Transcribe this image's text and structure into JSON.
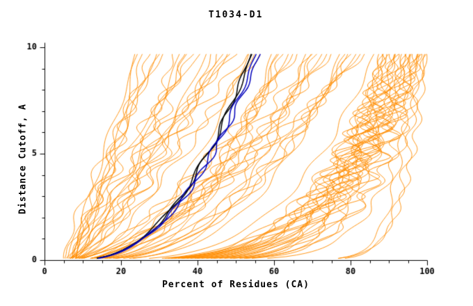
{
  "title": "T1034-D1",
  "chart_data": {
    "type": "line",
    "title": "T1034-D1",
    "xlabel": "Percent of Residues (CA)",
    "ylabel": "Distance Cutoff, A",
    "xlim": [
      0,
      100
    ],
    "ylim": [
      0,
      10
    ],
    "x_major_ticks": [
      0,
      20,
      40,
      60,
      80,
      100
    ],
    "x_minor_step": 5,
    "y_major_ticks": [
      0,
      5,
      10
    ],
    "y_minor_step": 1,
    "grid": false,
    "legend": "none",
    "colors": {
      "models": "#ff8c00",
      "highlight_black": "#000000",
      "highlight_blue": "#0000bb",
      "axis": "#000000",
      "background": "#ffffff"
    },
    "curve_model": "x(y) = x0 + (x10 - x0) * (y/10)^p + amp * sin(freq*y*2*pi/10 + phase) * sin(pi*y/10)^0.7",
    "curve_params_format": [
      "x0",
      "x10",
      "p",
      "amp",
      "freq",
      "phase"
    ],
    "orange_curves": [
      [
        5,
        88,
        0.13,
        1.5,
        6,
        0
      ],
      [
        6,
        88.5,
        0.16,
        2,
        7.5,
        1
      ],
      [
        7,
        89,
        0.19,
        2.5,
        9,
        2
      ],
      [
        8,
        89.5,
        0.22,
        3,
        10.5,
        3
      ],
      [
        9,
        90,
        0.25,
        1.5,
        6,
        4
      ],
      [
        10,
        90.5,
        0.28,
        2,
        7.5,
        5
      ],
      [
        5,
        91,
        0.13,
        2.5,
        9,
        0
      ],
      [
        6,
        91.5,
        0.16,
        3,
        10.5,
        1
      ],
      [
        7,
        92,
        0.19,
        1.5,
        6,
        2
      ],
      [
        8,
        92.5,
        0.22,
        2,
        7.5,
        3
      ],
      [
        9,
        93,
        0.25,
        2.5,
        9,
        4
      ],
      [
        10,
        93.5,
        0.28,
        3,
        10.5,
        5
      ],
      [
        5,
        94,
        0.13,
        1.5,
        6,
        0
      ],
      [
        6,
        94.5,
        0.16,
        2,
        7.5,
        1
      ],
      [
        7,
        95,
        0.19,
        2.5,
        9,
        2
      ],
      [
        8,
        95.5,
        0.22,
        3,
        10.5,
        3
      ],
      [
        9,
        96,
        0.25,
        1.5,
        6,
        4
      ],
      [
        10,
        96.5,
        0.28,
        2,
        7.5,
        5
      ],
      [
        5,
        97,
        0.13,
        2.5,
        9,
        0
      ],
      [
        6,
        97.5,
        0.16,
        3,
        10.5,
        1
      ],
      [
        7,
        98,
        0.19,
        1.5,
        6,
        2
      ],
      [
        8,
        98.5,
        0.22,
        2,
        7.5,
        3
      ],
      [
        9,
        99,
        0.25,
        2.5,
        9,
        4
      ],
      [
        10,
        99.5,
        0.28,
        3,
        10.5,
        5
      ],
      [
        5,
        100,
        0.12,
        1.5,
        6,
        0
      ],
      [
        7,
        100,
        0.15,
        2,
        8,
        2
      ],
      [
        6,
        96,
        0.05,
        1,
        5,
        0
      ],
      [
        7,
        98,
        0.05,
        1.2,
        6,
        2
      ],
      [
        8,
        100,
        0.06,
        1,
        7,
        4
      ],
      [
        5,
        60,
        0.3,
        1,
        4,
        0
      ],
      [
        7,
        61.5,
        0.38,
        1.6,
        6,
        1
      ],
      [
        9,
        63,
        0.46,
        2.2,
        8,
        2
      ],
      [
        11,
        64.5,
        0.54,
        1,
        4,
        3
      ],
      [
        5,
        66,
        0.62,
        1.6,
        6,
        4
      ],
      [
        7,
        67.5,
        0.7,
        2.2,
        8,
        5
      ],
      [
        9,
        69,
        0.3,
        1,
        4,
        0
      ],
      [
        11,
        70.5,
        0.38,
        1.6,
        6,
        1
      ],
      [
        5,
        72,
        0.46,
        2.2,
        8,
        2
      ],
      [
        7,
        73.5,
        0.54,
        1,
        4,
        3
      ],
      [
        9,
        75,
        0.62,
        1.6,
        6,
        4
      ],
      [
        11,
        76.5,
        0.7,
        2.2,
        8,
        5
      ],
      [
        5,
        78,
        0.3,
        1,
        4,
        0
      ],
      [
        7,
        79.5,
        0.38,
        1.6,
        6,
        1
      ],
      [
        9,
        81,
        0.46,
        2.2,
        8,
        2
      ],
      [
        11,
        82.5,
        0.54,
        1,
        4,
        3
      ],
      [
        5,
        84,
        0.62,
        1.6,
        6,
        4
      ],
      [
        7,
        85.5,
        0.7,
        2.2,
        8,
        5
      ],
      [
        9,
        87,
        0.3,
        1,
        4,
        0
      ],
      [
        11,
        62,
        0.5,
        1.6,
        5,
        1
      ],
      [
        6,
        71,
        0.6,
        2.2,
        7,
        2
      ],
      [
        8,
        80,
        0.4,
        1,
        6,
        3
      ],
      [
        5,
        24,
        0.5,
        0.8,
        3,
        0
      ],
      [
        6,
        26,
        0.7,
        1.4,
        5,
        1
      ],
      [
        7,
        28,
        0.9,
        2,
        7,
        2
      ],
      [
        8,
        30,
        1.1,
        0.8,
        3,
        3
      ],
      [
        5,
        32,
        1.3,
        1.4,
        5,
        4
      ],
      [
        6,
        34,
        0.5,
        2,
        7,
        5
      ],
      [
        7,
        36,
        0.7,
        0.8,
        3,
        0
      ],
      [
        8,
        38,
        0.9,
        1.4,
        5,
        1
      ],
      [
        5,
        40,
        1.1,
        2,
        7,
        2
      ],
      [
        6,
        42,
        1.3,
        0.8,
        3,
        3
      ],
      [
        7,
        44,
        0.5,
        1.4,
        5,
        4
      ],
      [
        8,
        46,
        0.7,
        2,
        7,
        5
      ],
      [
        5,
        48,
        0.9,
        0.8,
        3,
        0
      ],
      [
        6,
        50,
        1.1,
        1.4,
        5,
        1
      ],
      [
        7,
        52,
        1.3,
        2,
        7,
        2
      ],
      [
        8,
        54,
        0.5,
        0.8,
        3,
        3
      ],
      [
        5,
        56,
        0.7,
        1.4,
        5,
        4
      ],
      [
        6,
        58,
        0.9,
        2,
        7,
        5
      ],
      [
        7,
        25,
        1.1,
        0.8,
        3,
        0
      ],
      [
        8,
        31,
        1.3,
        1.4,
        5,
        1
      ],
      [
        5,
        37,
        0.5,
        2,
        7,
        2
      ],
      [
        6,
        43,
        0.7,
        0.8,
        3,
        3
      ],
      [
        7,
        49,
        0.9,
        1.4,
        5,
        4
      ],
      [
        8,
        55,
        1.1,
        2,
        7,
        5
      ]
    ],
    "black_curves": [
      [
        8,
        55,
        0.44,
        0.8,
        4,
        0
      ],
      [
        7.5,
        54.5,
        0.42,
        0.7,
        5,
        3
      ]
    ],
    "blue_curves": [
      [
        8,
        56,
        0.43,
        0.8,
        5,
        1
      ],
      [
        8.5,
        57,
        0.45,
        0.8,
        6,
        2
      ]
    ]
  }
}
